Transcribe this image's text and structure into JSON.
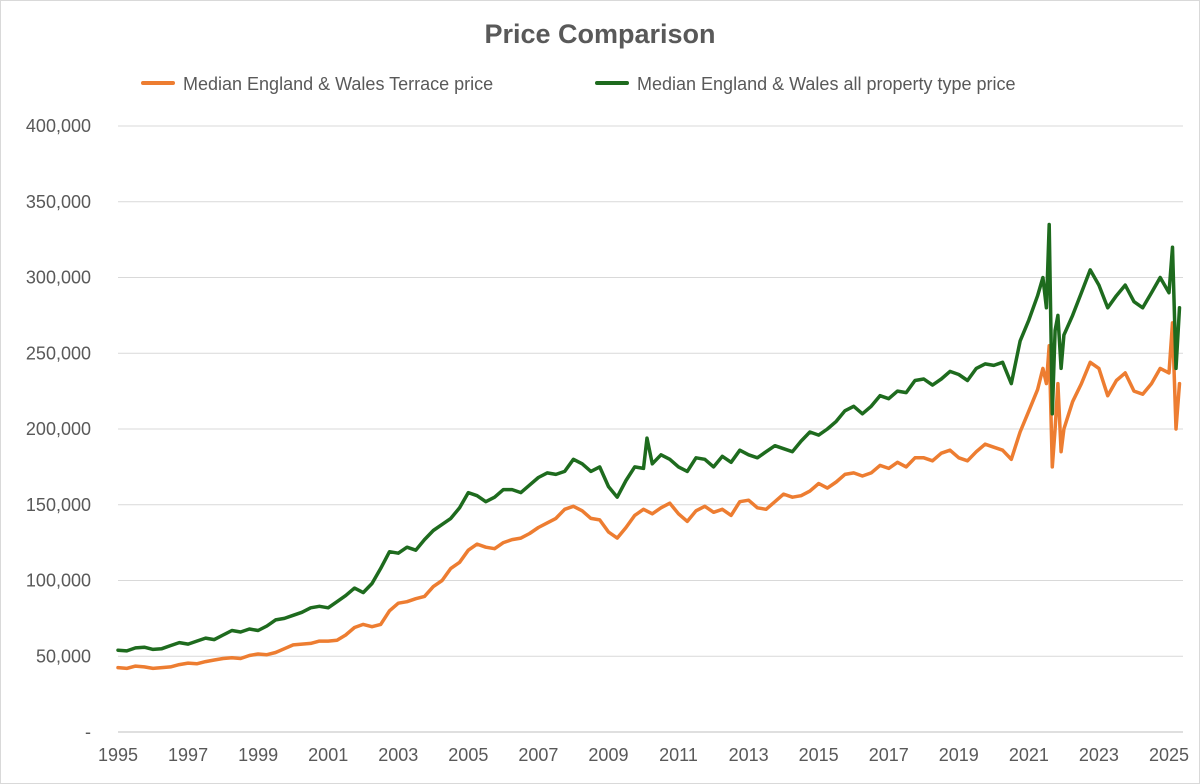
{
  "chart_data": {
    "type": "line",
    "title": "Price Comparison",
    "xlabel": "",
    "ylabel": "",
    "xlim": [
      1995,
      2025.4
    ],
    "ylim": [
      0,
      400000
    ],
    "y_ticks": [
      0,
      50000,
      100000,
      150000,
      200000,
      250000,
      300000,
      350000,
      400000
    ],
    "y_tick_labels": [
      "-",
      "50,000",
      "100,000",
      "150,000",
      "200,000",
      "250,000",
      "300,000",
      "350,000",
      "400,000"
    ],
    "x_tick_labels": [
      "1995",
      "1997",
      "1999",
      "2001",
      "2003",
      "2005",
      "2007",
      "2009",
      "2011",
      "2013",
      "2015",
      "2017",
      "2019",
      "2021",
      "2023",
      "2025"
    ],
    "x_tick_values": [
      1995,
      1997,
      1999,
      2001,
      2003,
      2005,
      2007,
      2009,
      2011,
      2013,
      2015,
      2017,
      2019,
      2021,
      2023,
      2025
    ],
    "grid": "horizontal",
    "legend_position": "top",
    "series": [
      {
        "name": "Median England & Wales Terrace price",
        "color": "#ed7d31",
        "points": [
          [
            1995.0,
            42500
          ],
          [
            1995.25,
            42000
          ],
          [
            1995.5,
            43500
          ],
          [
            1995.75,
            43000
          ],
          [
            1996.0,
            42000
          ],
          [
            1996.25,
            42500
          ],
          [
            1996.5,
            43000
          ],
          [
            1996.75,
            44500
          ],
          [
            1997.0,
            45500
          ],
          [
            1997.25,
            45000
          ],
          [
            1997.5,
            46500
          ],
          [
            1997.75,
            47500
          ],
          [
            1998.0,
            48500
          ],
          [
            1998.25,
            49000
          ],
          [
            1998.5,
            48500
          ],
          [
            1998.75,
            50500
          ],
          [
            1999.0,
            51500
          ],
          [
            1999.25,
            51000
          ],
          [
            1999.5,
            52500
          ],
          [
            1999.75,
            55000
          ],
          [
            2000.0,
            57500
          ],
          [
            2000.25,
            58000
          ],
          [
            2000.5,
            58500
          ],
          [
            2000.75,
            60000
          ],
          [
            2001.0,
            60000
          ],
          [
            2001.25,
            60500
          ],
          [
            2001.5,
            64000
          ],
          [
            2001.75,
            69000
          ],
          [
            2002.0,
            71000
          ],
          [
            2002.25,
            69500
          ],
          [
            2002.5,
            71000
          ],
          [
            2002.75,
            80000
          ],
          [
            2003.0,
            85000
          ],
          [
            2003.25,
            86000
          ],
          [
            2003.5,
            88000
          ],
          [
            2003.75,
            89500
          ],
          [
            2004.0,
            96000
          ],
          [
            2004.25,
            100000
          ],
          [
            2004.5,
            108000
          ],
          [
            2004.75,
            112000
          ],
          [
            2005.0,
            120000
          ],
          [
            2005.25,
            124000
          ],
          [
            2005.5,
            122000
          ],
          [
            2005.75,
            121000
          ],
          [
            2006.0,
            125000
          ],
          [
            2006.25,
            127000
          ],
          [
            2006.5,
            128000
          ],
          [
            2006.75,
            131000
          ],
          [
            2007.0,
            135000
          ],
          [
            2007.25,
            138000
          ],
          [
            2007.5,
            141000
          ],
          [
            2007.75,
            147000
          ],
          [
            2008.0,
            149000
          ],
          [
            2008.25,
            146000
          ],
          [
            2008.5,
            141000
          ],
          [
            2008.75,
            140000
          ],
          [
            2009.0,
            132000
          ],
          [
            2009.25,
            128000
          ],
          [
            2009.5,
            135000
          ],
          [
            2009.75,
            143000
          ],
          [
            2010.0,
            147000
          ],
          [
            2010.25,
            144000
          ],
          [
            2010.5,
            148000
          ],
          [
            2010.75,
            151000
          ],
          [
            2011.0,
            144000
          ],
          [
            2011.25,
            139000
          ],
          [
            2011.5,
            146000
          ],
          [
            2011.75,
            149000
          ],
          [
            2012.0,
            145000
          ],
          [
            2012.25,
            147000
          ],
          [
            2012.5,
            143000
          ],
          [
            2012.75,
            152000
          ],
          [
            2013.0,
            153000
          ],
          [
            2013.25,
            148000
          ],
          [
            2013.5,
            147000
          ],
          [
            2013.75,
            152000
          ],
          [
            2014.0,
            157000
          ],
          [
            2014.25,
            155000
          ],
          [
            2014.5,
            156000
          ],
          [
            2014.75,
            159000
          ],
          [
            2015.0,
            164000
          ],
          [
            2015.25,
            161000
          ],
          [
            2015.5,
            165000
          ],
          [
            2015.75,
            170000
          ],
          [
            2016.0,
            171000
          ],
          [
            2016.25,
            169000
          ],
          [
            2016.5,
            171000
          ],
          [
            2016.75,
            176000
          ],
          [
            2017.0,
            174000
          ],
          [
            2017.25,
            178000
          ],
          [
            2017.5,
            175000
          ],
          [
            2017.75,
            181000
          ],
          [
            2018.0,
            181000
          ],
          [
            2018.25,
            179000
          ],
          [
            2018.5,
            184000
          ],
          [
            2018.75,
            186000
          ],
          [
            2019.0,
            181000
          ],
          [
            2019.25,
            179000
          ],
          [
            2019.5,
            185000
          ],
          [
            2019.75,
            190000
          ],
          [
            2020.0,
            188000
          ],
          [
            2020.25,
            186000
          ],
          [
            2020.5,
            180000
          ],
          [
            2020.75,
            198000
          ],
          [
            2021.0,
            212000
          ],
          [
            2021.25,
            226000
          ],
          [
            2021.4,
            240000
          ],
          [
            2021.5,
            230000
          ],
          [
            2021.58,
            255000
          ],
          [
            2021.67,
            175000
          ],
          [
            2021.75,
            200000
          ],
          [
            2021.83,
            230000
          ],
          [
            2021.92,
            185000
          ],
          [
            2022.0,
            200000
          ],
          [
            2022.25,
            218000
          ],
          [
            2022.5,
            230000
          ],
          [
            2022.75,
            244000
          ],
          [
            2023.0,
            240000
          ],
          [
            2023.25,
            222000
          ],
          [
            2023.5,
            232000
          ],
          [
            2023.75,
            237000
          ],
          [
            2024.0,
            225000
          ],
          [
            2024.25,
            223000
          ],
          [
            2024.5,
            230000
          ],
          [
            2024.75,
            240000
          ],
          [
            2025.0,
            237000
          ],
          [
            2025.1,
            270000
          ],
          [
            2025.2,
            200000
          ],
          [
            2025.3,
            230000
          ]
        ]
      },
      {
        "name": "Median England & Wales all property type price",
        "color": "#1e6b1e",
        "points": [
          [
            1995.0,
            54000
          ],
          [
            1995.25,
            53500
          ],
          [
            1995.5,
            55500
          ],
          [
            1995.75,
            56000
          ],
          [
            1996.0,
            54500
          ],
          [
            1996.25,
            55000
          ],
          [
            1996.5,
            57000
          ],
          [
            1996.75,
            59000
          ],
          [
            1997.0,
            58000
          ],
          [
            1997.25,
            60000
          ],
          [
            1997.5,
            62000
          ],
          [
            1997.75,
            61000
          ],
          [
            1998.0,
            64000
          ],
          [
            1998.25,
            67000
          ],
          [
            1998.5,
            66000
          ],
          [
            1998.75,
            68000
          ],
          [
            1999.0,
            67000
          ],
          [
            1999.25,
            70000
          ],
          [
            1999.5,
            74000
          ],
          [
            1999.75,
            75000
          ],
          [
            2000.0,
            77000
          ],
          [
            2000.25,
            79000
          ],
          [
            2000.5,
            82000
          ],
          [
            2000.75,
            83000
          ],
          [
            2001.0,
            82000
          ],
          [
            2001.25,
            86000
          ],
          [
            2001.5,
            90000
          ],
          [
            2001.75,
            95000
          ],
          [
            2002.0,
            92000
          ],
          [
            2002.25,
            98000
          ],
          [
            2002.5,
            108000
          ],
          [
            2002.75,
            119000
          ],
          [
            2003.0,
            118000
          ],
          [
            2003.25,
            122000
          ],
          [
            2003.5,
            120000
          ],
          [
            2003.75,
            127000
          ],
          [
            2004.0,
            133000
          ],
          [
            2004.25,
            137000
          ],
          [
            2004.5,
            141000
          ],
          [
            2004.75,
            148000
          ],
          [
            2005.0,
            158000
          ],
          [
            2005.25,
            156000
          ],
          [
            2005.5,
            152000
          ],
          [
            2005.75,
            155000
          ],
          [
            2006.0,
            160000
          ],
          [
            2006.25,
            160000
          ],
          [
            2006.5,
            158000
          ],
          [
            2006.75,
            163000
          ],
          [
            2007.0,
            168000
          ],
          [
            2007.25,
            171000
          ],
          [
            2007.5,
            170000
          ],
          [
            2007.75,
            172000
          ],
          [
            2008.0,
            180000
          ],
          [
            2008.25,
            177000
          ],
          [
            2008.5,
            172000
          ],
          [
            2008.75,
            175000
          ],
          [
            2009.0,
            162000
          ],
          [
            2009.25,
            155000
          ],
          [
            2009.5,
            166000
          ],
          [
            2009.75,
            175000
          ],
          [
            2010.0,
            174000
          ],
          [
            2010.1,
            194000
          ],
          [
            2010.25,
            177000
          ],
          [
            2010.5,
            183000
          ],
          [
            2010.75,
            180000
          ],
          [
            2011.0,
            175000
          ],
          [
            2011.25,
            172000
          ],
          [
            2011.5,
            181000
          ],
          [
            2011.75,
            180000
          ],
          [
            2012.0,
            175000
          ],
          [
            2012.25,
            182000
          ],
          [
            2012.5,
            178000
          ],
          [
            2012.75,
            186000
          ],
          [
            2013.0,
            183000
          ],
          [
            2013.25,
            181000
          ],
          [
            2013.5,
            185000
          ],
          [
            2013.75,
            189000
          ],
          [
            2014.0,
            187000
          ],
          [
            2014.25,
            185000
          ],
          [
            2014.5,
            192000
          ],
          [
            2014.75,
            198000
          ],
          [
            2015.0,
            196000
          ],
          [
            2015.25,
            200000
          ],
          [
            2015.5,
            205000
          ],
          [
            2015.75,
            212000
          ],
          [
            2016.0,
            215000
          ],
          [
            2016.25,
            210000
          ],
          [
            2016.5,
            215000
          ],
          [
            2016.75,
            222000
          ],
          [
            2017.0,
            220000
          ],
          [
            2017.25,
            225000
          ],
          [
            2017.5,
            224000
          ],
          [
            2017.75,
            232000
          ],
          [
            2018.0,
            233000
          ],
          [
            2018.25,
            229000
          ],
          [
            2018.5,
            233000
          ],
          [
            2018.75,
            238000
          ],
          [
            2019.0,
            236000
          ],
          [
            2019.25,
            232000
          ],
          [
            2019.5,
            240000
          ],
          [
            2019.75,
            243000
          ],
          [
            2020.0,
            242000
          ],
          [
            2020.25,
            244000
          ],
          [
            2020.5,
            230000
          ],
          [
            2020.75,
            258000
          ],
          [
            2021.0,
            272000
          ],
          [
            2021.25,
            288000
          ],
          [
            2021.4,
            300000
          ],
          [
            2021.5,
            280000
          ],
          [
            2021.58,
            335000
          ],
          [
            2021.67,
            210000
          ],
          [
            2021.75,
            265000
          ],
          [
            2021.83,
            275000
          ],
          [
            2021.92,
            240000
          ],
          [
            2022.0,
            262000
          ],
          [
            2022.25,
            275000
          ],
          [
            2022.5,
            290000
          ],
          [
            2022.75,
            305000
          ],
          [
            2023.0,
            295000
          ],
          [
            2023.25,
            280000
          ],
          [
            2023.5,
            288000
          ],
          [
            2023.75,
            295000
          ],
          [
            2024.0,
            284000
          ],
          [
            2024.25,
            280000
          ],
          [
            2024.5,
            290000
          ],
          [
            2024.75,
            300000
          ],
          [
            2025.0,
            290000
          ],
          [
            2025.1,
            320000
          ],
          [
            2025.2,
            240000
          ],
          [
            2025.3,
            280000
          ]
        ]
      }
    ]
  }
}
